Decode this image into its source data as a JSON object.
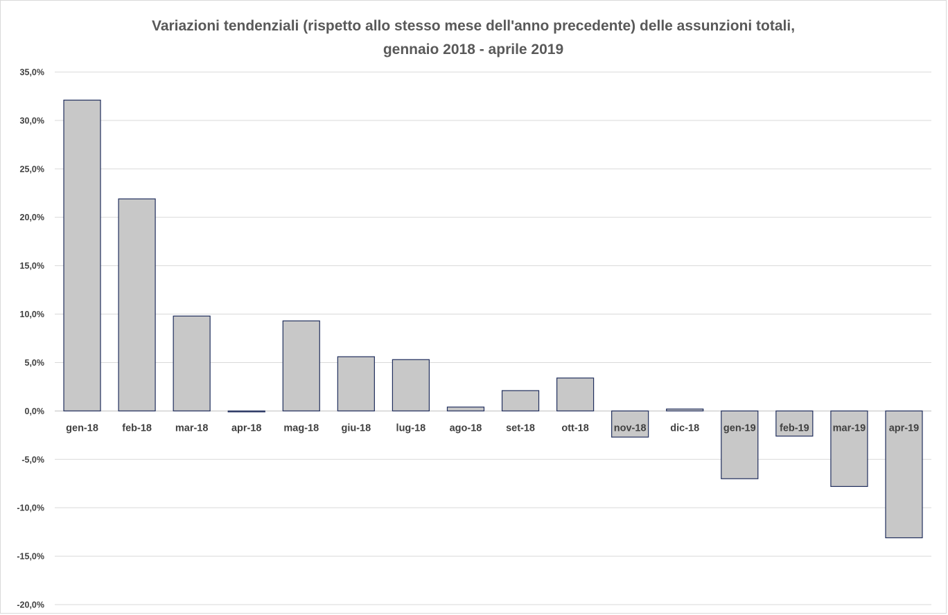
{
  "chart_data": {
    "type": "bar",
    "title": "Variazioni tendenziali (rispetto allo stesso mese dell'anno precedente) delle assunzioni totali,",
    "subtitle": "gennaio 2018 - aprile 2019",
    "categories": [
      "gen-18",
      "feb-18",
      "mar-18",
      "apr-18",
      "mag-18",
      "giu-18",
      "lug-18",
      "ago-18",
      "set-18",
      "ott-18",
      "nov-18",
      "dic-18",
      "gen-19",
      "feb-19",
      "mar-19",
      "apr-19"
    ],
    "values": [
      32.1,
      21.9,
      9.8,
      -0.1,
      9.3,
      5.6,
      5.3,
      0.4,
      2.1,
      3.4,
      -2.7,
      0.2,
      -7.0,
      -2.6,
      -7.8,
      -13.1
    ],
    "ylim": [
      -20,
      35
    ],
    "yticks": [
      35,
      30,
      25,
      20,
      15,
      10,
      5,
      0,
      -5,
      -10,
      -15,
      -20
    ],
    "ytick_labels": [
      "35,0%",
      "30,0%",
      "25,0%",
      "20,0%",
      "15,0%",
      "10,0%",
      "5,0%",
      "0,0%",
      "-5,0%",
      "-10,0%",
      "-15,0%",
      "-20,0%"
    ],
    "xlabel": "",
    "ylabel": "",
    "grid": true,
    "legend": "none",
    "colors": {
      "bar_fill": "#c8c8c8",
      "bar_stroke": "#1f2d5c",
      "title": "#595959",
      "tick": "#404040"
    }
  }
}
